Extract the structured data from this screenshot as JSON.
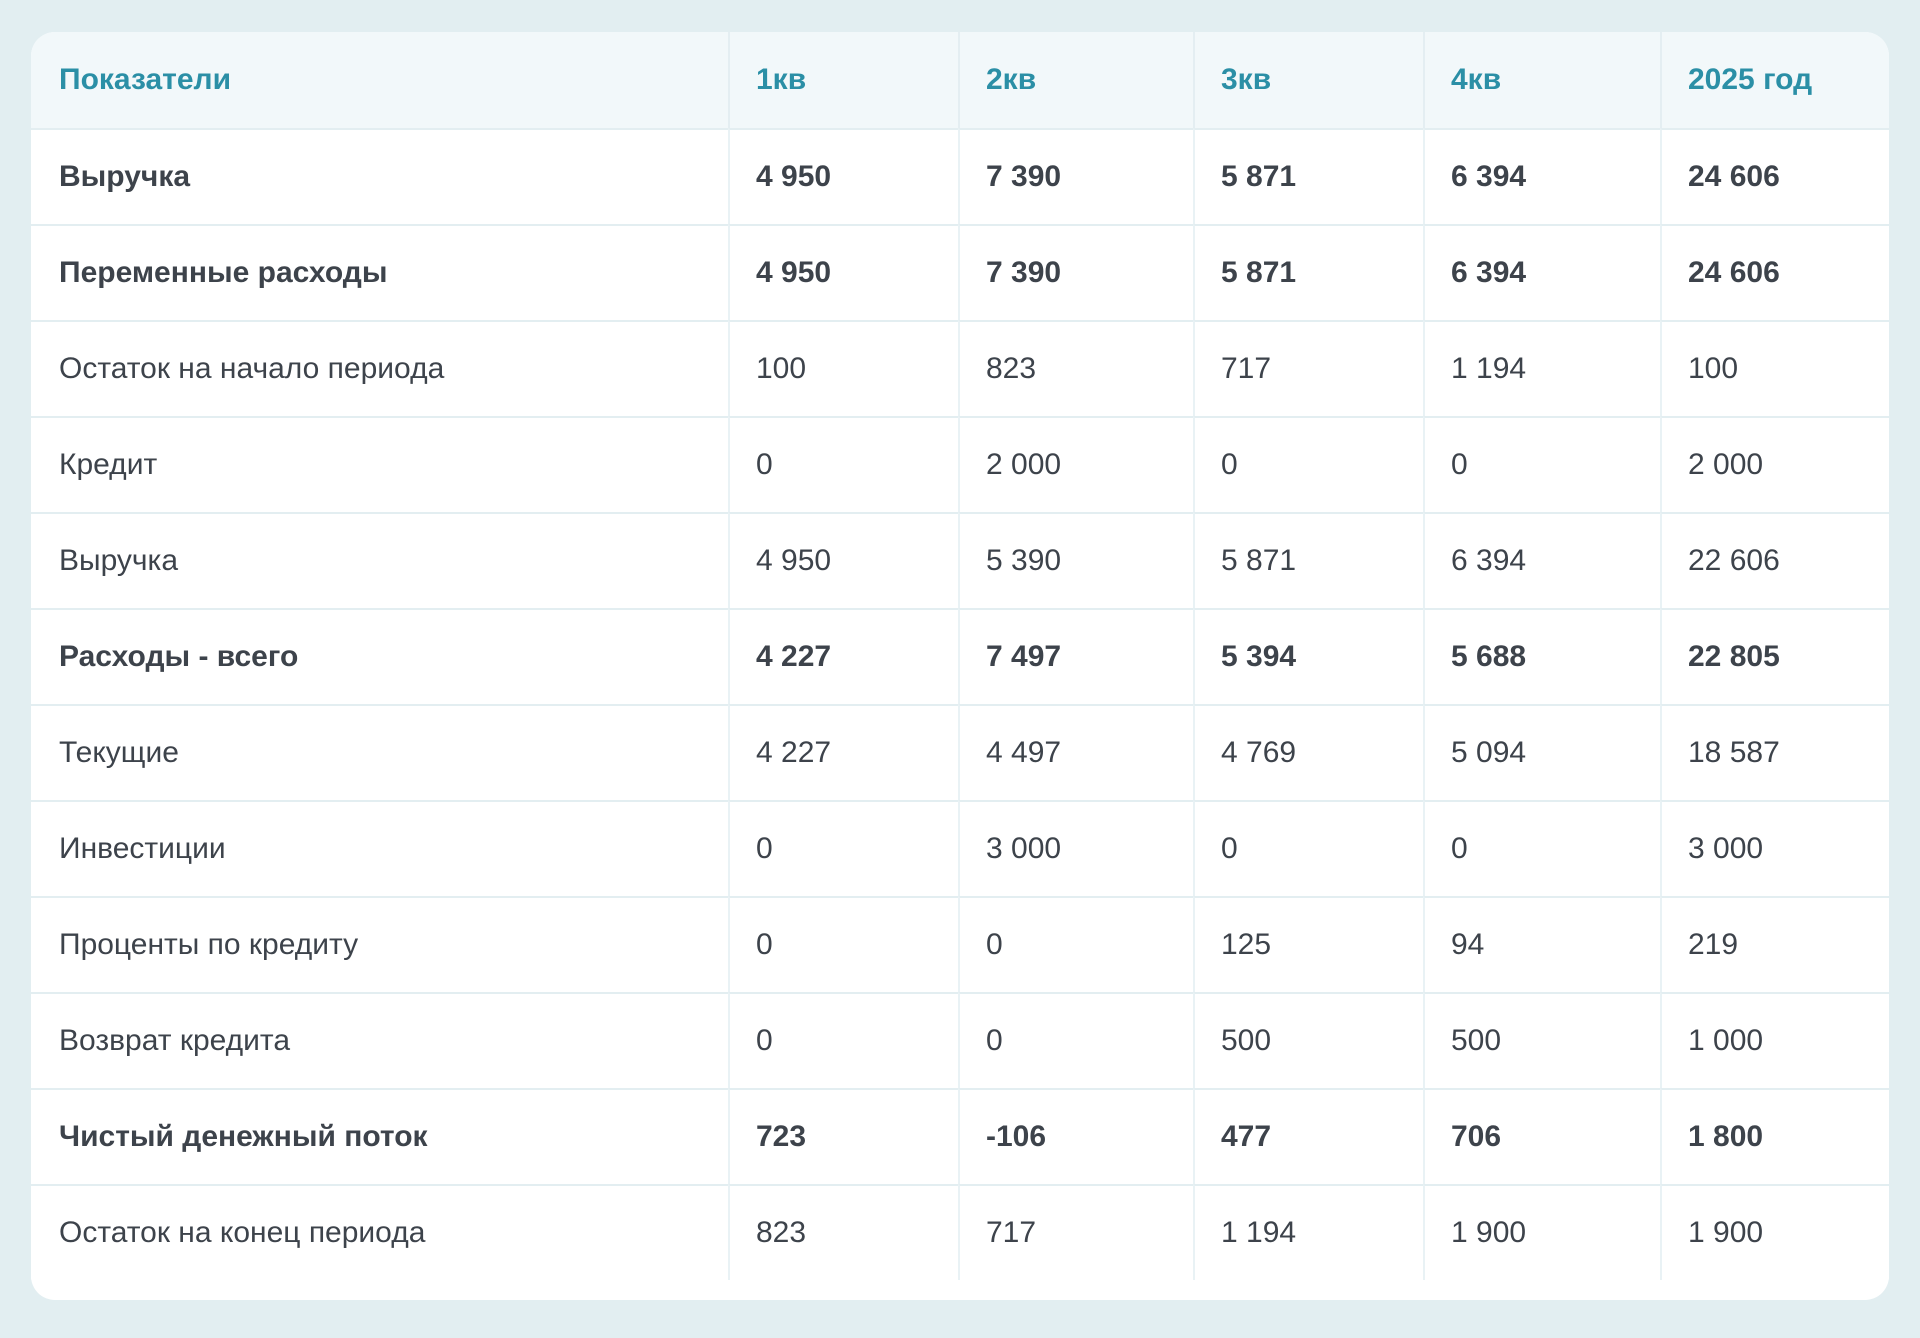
{
  "colors": {
    "page_background": "#e2eef1",
    "card_background": "#ffffff",
    "header_background": "#f2f8fa",
    "accent_teal": "#2b8fa6",
    "body_text": "#3d434b",
    "row_separator": "#e3eef1",
    "column_separator": "#e9f2f5"
  },
  "table": {
    "columns": [
      {
        "label": "Показатели"
      },
      {
        "label": "1кв"
      },
      {
        "label": "2кв"
      },
      {
        "label": "3кв"
      },
      {
        "label": "4кв"
      },
      {
        "label": "2025 год"
      }
    ],
    "rows": [
      {
        "label": "Выручка",
        "bold": true,
        "values": [
          "4 950",
          "7 390",
          "5 871",
          "6 394",
          "24 606"
        ]
      },
      {
        "label": "Переменные расходы",
        "bold": true,
        "values": [
          "4 950",
          "7 390",
          "5 871",
          "6 394",
          "24 606"
        ]
      },
      {
        "label": "Остаток на начало периода",
        "bold": false,
        "values": [
          "100",
          "823",
          "717",
          "1 194",
          "100"
        ]
      },
      {
        "label": "Кредит",
        "bold": false,
        "values": [
          "0",
          "2 000",
          "0",
          "0",
          "2 000"
        ]
      },
      {
        "label": "Выручка",
        "bold": false,
        "values": [
          "4 950",
          "5 390",
          "5 871",
          "6 394",
          "22 606"
        ]
      },
      {
        "label": "Расходы - всего",
        "bold": true,
        "values": [
          "4 227",
          "7 497",
          "5 394",
          "5 688",
          "22 805"
        ]
      },
      {
        "label": "Текущие",
        "bold": false,
        "values": [
          "4 227",
          "4 497",
          "4 769",
          "5 094",
          "18 587"
        ]
      },
      {
        "label": "Инвестиции",
        "bold": false,
        "values": [
          "0",
          "3 000",
          "0",
          "0",
          "3 000"
        ]
      },
      {
        "label": "Проценты по кредиту",
        "bold": false,
        "values": [
          "0",
          "0",
          "125",
          "94",
          "219"
        ]
      },
      {
        "label": "Возврат кредита",
        "bold": false,
        "values": [
          "0",
          "0",
          "500",
          "500",
          "1 000"
        ]
      },
      {
        "label": "Чистый денежный поток",
        "bold": true,
        "values": [
          "723",
          "-106",
          "477",
          "706",
          "1 800"
        ]
      },
      {
        "label": "Остаток на конец периода",
        "bold": false,
        "values": [
          "823",
          "717",
          "1 194",
          "1 900",
          "1 900"
        ]
      }
    ]
  }
}
